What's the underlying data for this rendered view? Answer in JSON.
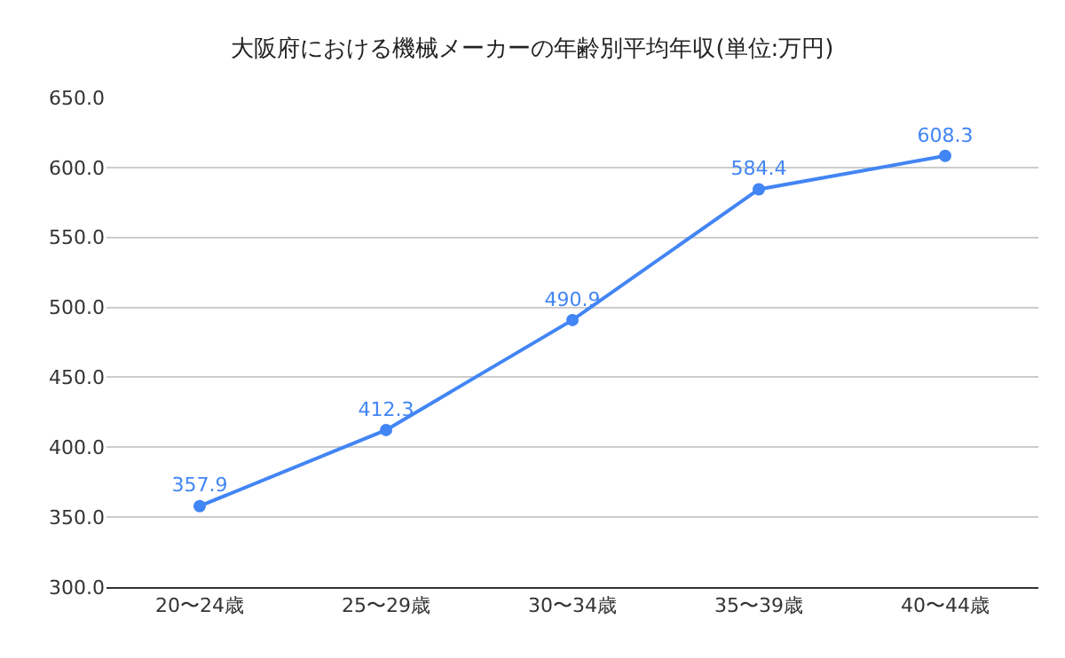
{
  "chart_data": {
    "type": "line",
    "title": "大阪府における機械メーカーの年齢別平均年収(単位:万円)",
    "categories": [
      "20〜24歳",
      "25〜29歳",
      "30〜34歳",
      "35〜39歳",
      "40〜44歳"
    ],
    "series": [
      {
        "color": "#4285f4",
        "values": [
          357.9,
          412.3,
          490.9,
          584.4,
          608.3
        ]
      }
    ],
    "ylim": [
      300,
      650
    ],
    "yticks": [
      {
        "value": 300,
        "label": "300.0"
      },
      {
        "value": 350,
        "label": "350.0"
      },
      {
        "value": 400,
        "label": "400.0"
      },
      {
        "value": 450,
        "label": "450.0"
      },
      {
        "value": 500,
        "label": "500.0"
      },
      {
        "value": 550,
        "label": "550.0"
      },
      {
        "value": 600,
        "label": "600.0"
      },
      {
        "value": 650,
        "label": "650.0"
      }
    ],
    "grid": "y",
    "marker": "circle",
    "line_style": "solid",
    "data_labels": true
  }
}
